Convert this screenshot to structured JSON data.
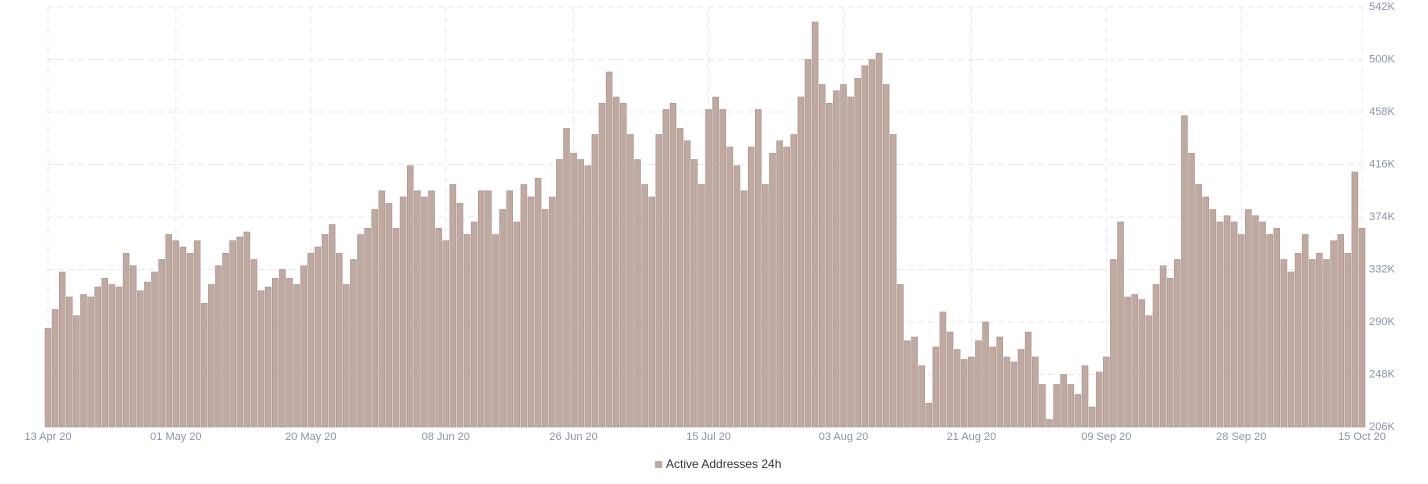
{
  "chart_data": {
    "type": "bar",
    "categories": [
      "13 Apr 20",
      null,
      null,
      null,
      null,
      null,
      null,
      null,
      null,
      null,
      null,
      null,
      null,
      null,
      null,
      null,
      null,
      null,
      "01 May 20",
      null,
      null,
      null,
      null,
      null,
      null,
      null,
      null,
      null,
      null,
      null,
      null,
      null,
      null,
      null,
      null,
      null,
      null,
      "20 May 20",
      null,
      null,
      null,
      null,
      null,
      null,
      null,
      null,
      null,
      null,
      null,
      null,
      null,
      null,
      null,
      null,
      null,
      null,
      "08 Jun 20",
      null,
      null,
      null,
      null,
      null,
      null,
      null,
      null,
      null,
      null,
      null,
      null,
      null,
      null,
      null,
      null,
      null,
      "26 Jun 20",
      null,
      null,
      null,
      null,
      null,
      null,
      null,
      null,
      null,
      null,
      null,
      null,
      null,
      null,
      null,
      null,
      null,
      null,
      "15 Jul 20",
      null,
      null,
      null,
      null,
      null,
      null,
      null,
      null,
      null,
      null,
      null,
      null,
      null,
      null,
      null,
      null,
      null,
      null,
      "03 Aug 20",
      null,
      null,
      null,
      null,
      null,
      null,
      null,
      null,
      null,
      null,
      null,
      null,
      null,
      null,
      null,
      null,
      null,
      "21 Aug 20",
      null,
      null,
      null,
      null,
      null,
      null,
      null,
      null,
      null,
      null,
      null,
      null,
      null,
      null,
      null,
      null,
      null,
      null,
      "09 Sep 20",
      null,
      null,
      null,
      null,
      null,
      null,
      null,
      null,
      null,
      null,
      null,
      null,
      null,
      null,
      null,
      null,
      null,
      null,
      "28 Sep 20",
      null,
      null,
      null,
      null,
      null,
      null,
      null,
      null,
      null,
      null,
      null,
      null,
      null,
      null,
      null,
      null,
      "15 Oct 20"
    ],
    "series": [
      {
        "name": "Active Addresses 24h",
        "color": "#bfa9a1",
        "values": [
          285000,
          300000,
          330000,
          310000,
          295000,
          312000,
          310000,
          318000,
          325000,
          320000,
          318000,
          345000,
          335000,
          315000,
          322000,
          330000,
          340000,
          360000,
          355000,
          350000,
          345000,
          355000,
          305000,
          320000,
          335000,
          345000,
          355000,
          358000,
          362000,
          340000,
          315000,
          318000,
          325000,
          332000,
          325000,
          320000,
          335000,
          345000,
          350000,
          360000,
          368000,
          345000,
          320000,
          340000,
          360000,
          365000,
          380000,
          395000,
          385000,
          365000,
          390000,
          415000,
          395000,
          390000,
          395000,
          365000,
          355000,
          400000,
          385000,
          360000,
          370000,
          395000,
          395000,
          360000,
          380000,
          395000,
          370000,
          400000,
          390000,
          405000,
          380000,
          390000,
          420000,
          445000,
          425000,
          420000,
          415000,
          440000,
          465000,
          490000,
          470000,
          465000,
          440000,
          420000,
          400000,
          390000,
          440000,
          460000,
          465000,
          445000,
          435000,
          420000,
          400000,
          460000,
          470000,
          460000,
          430000,
          415000,
          395000,
          430000,
          460000,
          400000,
          425000,
          435000,
          430000,
          440000,
          470000,
          500000,
          530000,
          480000,
          465000,
          475000,
          480000,
          470000,
          485000,
          495000,
          500000,
          505000,
          480000,
          440000,
          320000,
          275000,
          278000,
          255000,
          225000,
          270000,
          298000,
          282000,
          268000,
          260000,
          262000,
          275000,
          290000,
          270000,
          278000,
          262000,
          258000,
          268000,
          282000,
          262000,
          240000,
          212000,
          240000,
          248000,
          240000,
          232000,
          255000,
          222000,
          250000,
          262000,
          340000,
          370000,
          310000,
          312000,
          308000,
          295000,
          320000,
          335000,
          325000,
          340000,
          455000,
          425000,
          400000,
          390000,
          380000,
          370000,
          375000,
          370000,
          360000,
          380000,
          375000,
          370000,
          360000,
          365000,
          340000,
          330000,
          345000,
          360000,
          340000,
          345000,
          340000,
          355000,
          360000,
          345000,
          410000,
          365000
        ]
      }
    ],
    "ylim": [
      206000,
      542000
    ],
    "yticks": [
      {
        "value": 206000,
        "label": "206K"
      },
      {
        "value": 248000,
        "label": "248K"
      },
      {
        "value": 290000,
        "label": "290K"
      },
      {
        "value": 332000,
        "label": "332K"
      },
      {
        "value": 374000,
        "label": "374K"
      },
      {
        "value": 416000,
        "label": "416K"
      },
      {
        "value": 458000,
        "label": "458K"
      },
      {
        "value": 500000,
        "label": "500K"
      },
      {
        "value": 542000,
        "label": "542K"
      }
    ],
    "grid": true,
    "legend": "bottom"
  }
}
